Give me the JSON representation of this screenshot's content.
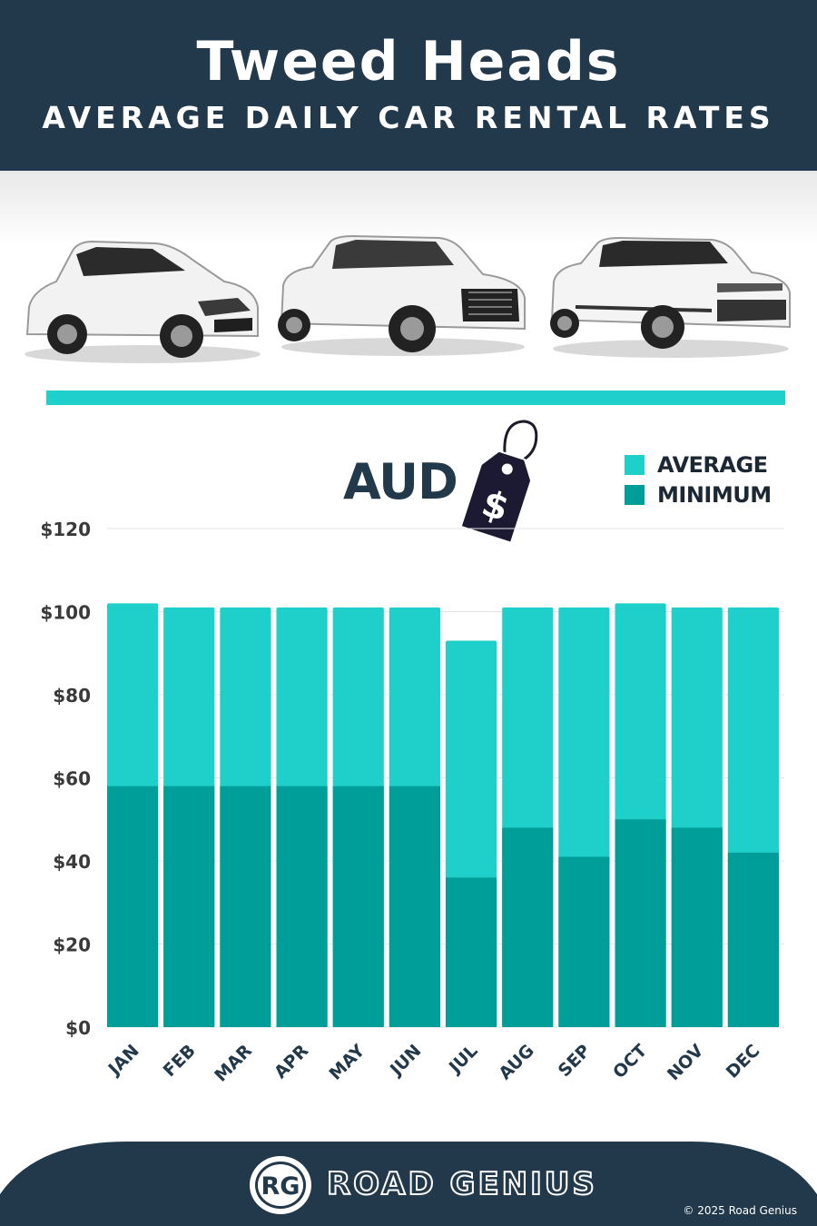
{
  "header": {
    "title": "Tweed Heads",
    "subtitle": "AVERAGE DAILY CAR RENTAL RATES"
  },
  "badge": {
    "currency": "AUD",
    "tag_symbol": "$"
  },
  "legend": {
    "average": "AVERAGE",
    "minimum": "MINIMUM"
  },
  "colors": {
    "header": "#22384b",
    "accent": "#1ecfca",
    "average": "#1ecfca",
    "minimum": "#009e99"
  },
  "chart_data": {
    "type": "bar",
    "categories": [
      "JAN",
      "FEB",
      "MAR",
      "APR",
      "MAY",
      "JUN",
      "JUL",
      "AUG",
      "SEP",
      "OCT",
      "NOV",
      "DEC"
    ],
    "series": [
      {
        "name": "AVERAGE",
        "values": [
          102,
          101,
          101,
          101,
          101,
          101,
          93,
          101,
          101,
          102,
          101,
          101
        ]
      },
      {
        "name": "MINIMUM",
        "values": [
          58,
          58,
          58,
          58,
          58,
          58,
          36,
          48,
          41,
          50,
          48,
          42
        ]
      }
    ],
    "overlay": true,
    "yticks": [
      "$0",
      "$20",
      "$40",
      "$60",
      "$80",
      "$100",
      "$120"
    ],
    "ylim": [
      0,
      120
    ],
    "grid": true,
    "legend_position": "top-right"
  },
  "footer": {
    "logo_initials": "RG",
    "brand": "ROAD GENIUS",
    "copyright": "© 2025 Road Genius"
  }
}
